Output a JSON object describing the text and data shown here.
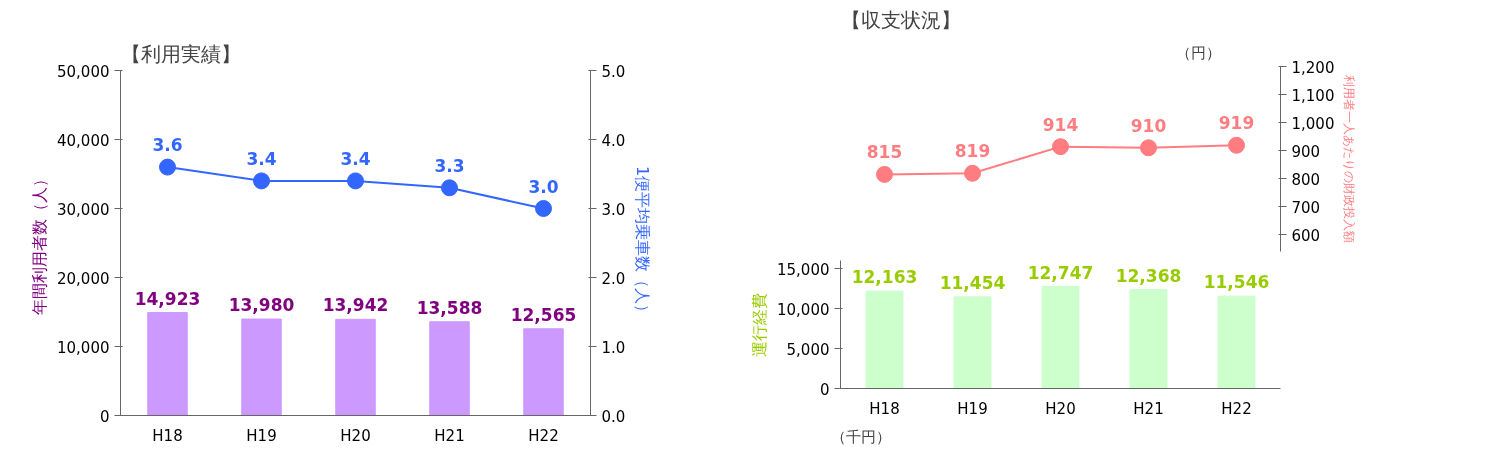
{
  "chart_data": [
    {
      "type": "bar",
      "title": "【利用実績】",
      "categories": [
        "H18",
        "H19",
        "H20",
        "H21",
        "H22"
      ],
      "ylabel": "年間利用者数（人）",
      "y2label": "1便平均乗車数（人）",
      "ylim": [
        0,
        50000
      ],
      "yticks": [
        {
          "value": 0,
          "label": "0"
        },
        {
          "value": 10000,
          "label": "10,000"
        },
        {
          "value": 20000,
          "label": "20,000"
        },
        {
          "value": 30000,
          "label": "30,000"
        },
        {
          "value": 40000,
          "label": "40,000"
        },
        {
          "value": 50000,
          "label": "50,000"
        }
      ],
      "y2lim": [
        0,
        5
      ],
      "y2ticks": [
        {
          "value": 0,
          "label": "0.0"
        },
        {
          "value": 1,
          "label": "1.0"
        },
        {
          "value": 2,
          "label": "2.0"
        },
        {
          "value": 3,
          "label": "3.0"
        },
        {
          "value": 4,
          "label": "4.0"
        },
        {
          "value": 5,
          "label": "5.0"
        }
      ],
      "grid": false,
      "series": [
        {
          "color": "#cc99ff",
          "values": [
            14923,
            13980,
            13942,
            13588,
            12565
          ],
          "value_labels": [
            "14,923",
            "13,980",
            "13,942",
            "13,588",
            "12,565"
          ]
        },
        {
          "type": "line",
          "axis": "y2",
          "color": "#3366ff",
          "marker": "circle",
          "values": [
            3.6,
            3.4,
            3.4,
            3.3,
            3.0
          ],
          "value_labels": [
            "3.6",
            "3.4",
            "3.4",
            "3.3",
            "3.0"
          ]
        }
      ]
    },
    {
      "type": "line",
      "title": "【収支状況】",
      "categories": [
        null,
        null,
        null,
        null,
        null
      ],
      "tick_labels": "y",
      "ylabel": "利用者一人あたりの財政投入額",
      "ylim": [
        540,
        1200
      ],
      "yticks": [
        {
          "value": 600,
          "label": "600"
        },
        {
          "value": 700,
          "label": "700"
        },
        {
          "value": 800,
          "label": "800"
        },
        {
          "value": 900,
          "label": "900"
        },
        {
          "value": 1000,
          "label": "1,000"
        },
        {
          "value": 1100,
          "label": "1,100"
        },
        {
          "value": 1200,
          "label": "1,200"
        }
      ],
      "annotations": [
        "（円）"
      ],
      "grid": false,
      "series": [
        {
          "color": "#ff7c80",
          "marker": "circle",
          "values": [
            815,
            819,
            914,
            910,
            919
          ],
          "value_labels": [
            "815",
            "819",
            "914",
            "910",
            "919"
          ]
        }
      ]
    },
    {
      "type": "bar",
      "categories": [
        "H18",
        "H19",
        "H20",
        "H21",
        "H22"
      ],
      "ylabel": "運行経費",
      "ylim": [
        0,
        16000
      ],
      "yticks": [
        {
          "value": 0,
          "label": "0"
        },
        {
          "value": 5000,
          "label": "5,000"
        },
        {
          "value": 10000,
          "label": "10,000"
        },
        {
          "value": 15000,
          "label": "15,000"
        }
      ],
      "annotations": [
        "（千円）"
      ],
      "grid": false,
      "series": [
        {
          "color": "#ccffcc",
          "values": [
            12163,
            11454,
            12747,
            12368,
            11546
          ],
          "value_labels": [
            "12,163",
            "11,454",
            "12,747",
            "12,368",
            "11,546"
          ]
        }
      ]
    }
  ]
}
